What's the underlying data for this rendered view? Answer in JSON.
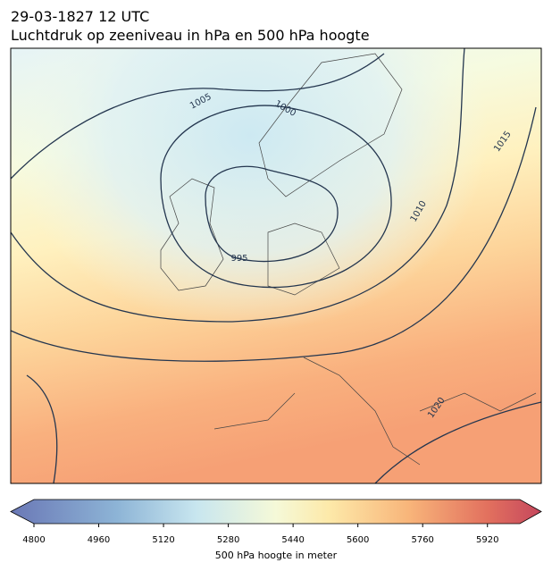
{
  "title": "29-03-1827 12 UTC",
  "subtitle": "Luchtdruk op zeeniveau in hPa en 500 hPa hoogte",
  "contour_labels": [
    "1005",
    "1000",
    "995",
    "1010",
    "1015",
    "1020"
  ],
  "colorbar": {
    "label": "500 hPa hoogte in meter",
    "range": [
      4800,
      6000
    ],
    "ticks": [
      4800,
      4960,
      5120,
      5280,
      5440,
      5600,
      5760,
      5920
    ]
  }
}
